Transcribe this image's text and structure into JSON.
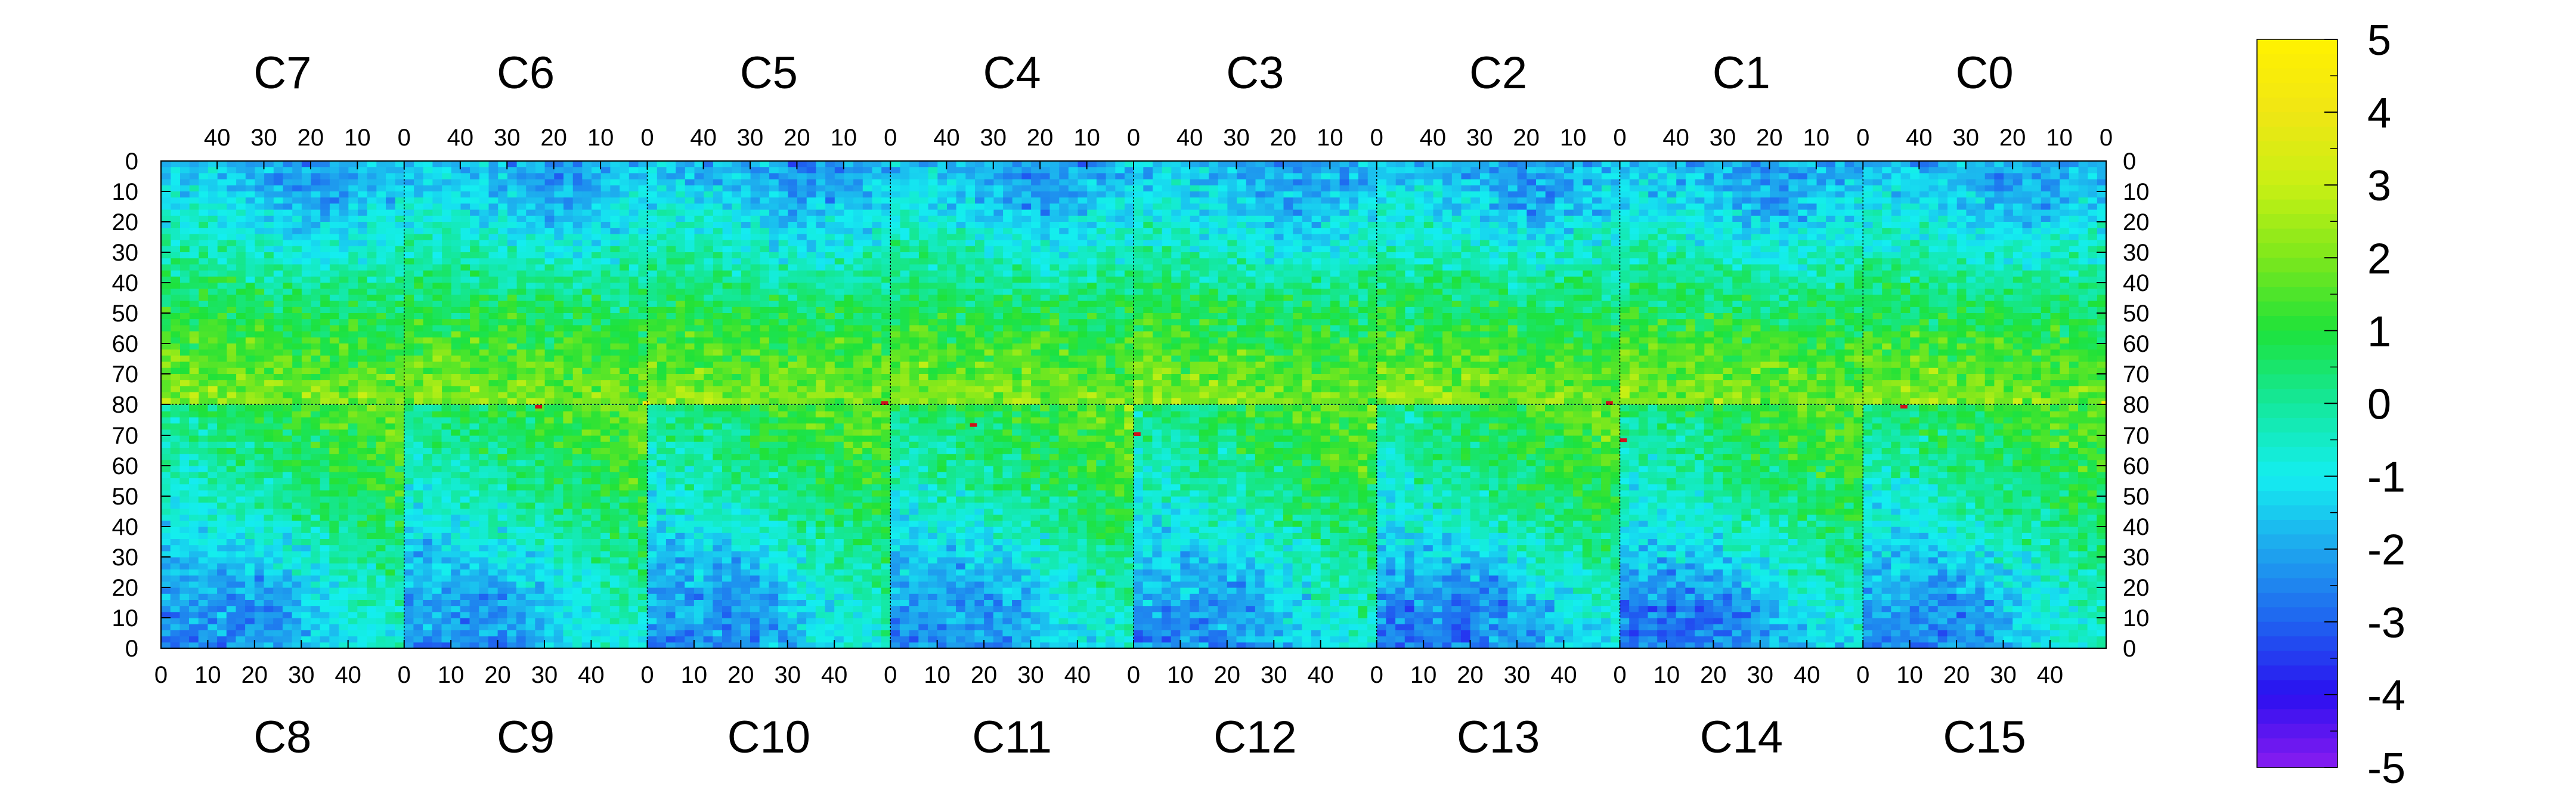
{
  "chart_data": {
    "type": "heatmap",
    "title": "",
    "top_row_chips": [
      "C7",
      "C6",
      "C5",
      "C4",
      "C3",
      "C2",
      "C1",
      "C0"
    ],
    "bottom_row_chips": [
      "C8",
      "C9",
      "C10",
      "C11",
      "C12",
      "C13",
      "C14",
      "C15"
    ],
    "x_ticks_top": [
      "40",
      "30",
      "20",
      "10",
      "0"
    ],
    "x_ticks_bottom": [
      "0",
      "10",
      "20",
      "30",
      "40"
    ],
    "y_ticks_top_half": [
      "0",
      "10",
      "20",
      "30",
      "40",
      "50",
      "60",
      "70",
      "80"
    ],
    "y_ticks_bottom_half": [
      "70",
      "60",
      "50",
      "40",
      "30",
      "20",
      "10",
      "0"
    ],
    "x_range_per_chip": [
      0,
      52
    ],
    "y_range_per_half": [
      0,
      80
    ],
    "zlim": [
      -5,
      5
    ],
    "colorbar_ticks": [
      "5",
      "4",
      "3",
      "2",
      "1",
      "0",
      "-1",
      "-2",
      "-3",
      "-4",
      "-5"
    ],
    "colormap": [
      "#8a1cf0",
      "#2a10f0",
      "#1f63f0",
      "#1ea7ee",
      "#14eef0",
      "#14e89c",
      "#1ee23a",
      "#7ee81c",
      "#c8f014",
      "#f0e614",
      "#fff200"
    ],
    "grid": false,
    "legend": "colorbar right",
    "pattern": "top row chips: low (blue, about -2) near row 0 around columns 10-25, rising to green/yellow (about +2 to +3) near row 80; bottom row chips: green/yellow (about +2) near row 80 at high columns, falling to blue (about -2 to -3) near row 0 at low columns",
    "hot_pixels": [
      {
        "chip": "C6",
        "col": 0,
        "row": 80,
        "value": 4.5
      },
      {
        "chip": "C5",
        "col": 1,
        "row": 80,
        "value": 10
      },
      {
        "chip": "C0",
        "col": 0,
        "row": 80,
        "value": 5
      },
      {
        "chip": "C14",
        "col": 0,
        "row": 68,
        "value": 10
      },
      {
        "chip": "C12",
        "col": 0,
        "row": 70,
        "value": 10
      },
      {
        "chip": "C11",
        "col": 17,
        "row": 73,
        "value": 8
      },
      {
        "chip": "C9",
        "col": 28,
        "row": 79,
        "value": 8
      },
      {
        "chip": "C15",
        "col": 8,
        "row": 79,
        "value": 10
      },
      {
        "chip": "C2",
        "col": 2,
        "row": 80,
        "value": 10
      }
    ]
  }
}
